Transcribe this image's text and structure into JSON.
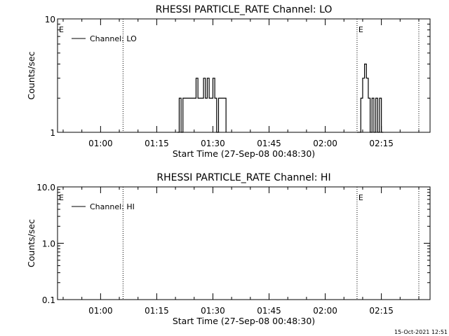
{
  "chart_data": [
    {
      "type": "line",
      "title": "RHESSI PARTICLE_RATE Channel: LO",
      "xlabel": "Start Time (27-Sep-08 00:48:30)",
      "ylabel": "Counts/sec",
      "yscale": "log",
      "ylim": [
        1,
        10
      ],
      "ytick_labels": [
        "1",
        "10"
      ],
      "ytick_values": [
        1,
        10
      ],
      "xlim": [
        "00:48:30",
        "02:28:00"
      ],
      "xtick_labels": [
        "01:00",
        "01:15",
        "01:30",
        "01:45",
        "02:00",
        "02:15"
      ],
      "xtick_values": [
        "01:00",
        "01:15",
        "01:30",
        "01:45",
        "02:00",
        "02:15"
      ],
      "vertical_lines": [
        "01:06:00",
        "02:08:30",
        "02:25:00"
      ],
      "flags": [
        {
          "label": "E",
          "x": "00:48:30"
        },
        {
          "label": "E",
          "x": "02:08:30"
        }
      ],
      "grid": false,
      "legend_position": "top-left",
      "series": [
        {
          "name": "Channel: LO",
          "x": [
            "01:20:30",
            "01:21:00",
            "01:21:30",
            "01:22:00",
            "01:25:00",
            "01:25:30",
            "01:26:00",
            "01:27:00",
            "01:27:30",
            "01:28:00",
            "01:28:30",
            "01:29:00",
            "01:30:00",
            "01:30:30",
            "01:31:00",
            "01:31:30",
            "01:32:00",
            "01:33:00",
            "01:33:30"
          ],
          "y": [
            1,
            2,
            1,
            2,
            2,
            3,
            2,
            2,
            3,
            2,
            3,
            2,
            3,
            2,
            1,
            2,
            2,
            2,
            1
          ]
        },
        {
          "name": "Channel: LO",
          "x": [
            "02:08:30",
            "02:09:30",
            "02:10:00",
            "02:10:30",
            "02:11:00",
            "02:11:30",
            "02:12:00",
            "02:12:30",
            "02:13:00",
            "02:13:30",
            "02:14:00",
            "02:14:30",
            "02:15:00",
            "02:15:30"
          ],
          "y": [
            1,
            2,
            3,
            4,
            3,
            2,
            1,
            2,
            1,
            2,
            1,
            2,
            1,
            1
          ]
        }
      ]
    },
    {
      "type": "line",
      "title": "RHESSI PARTICLE_RATE Channel: HI",
      "xlabel": "Start Time (27-Sep-08 00:48:30)",
      "ylabel": "Counts/sec",
      "yscale": "log",
      "ylim": [
        0.1,
        10
      ],
      "ytick_labels": [
        "0.1",
        "1.0",
        "10.0"
      ],
      "ytick_values": [
        0.1,
        1,
        10
      ],
      "xlim": [
        "00:48:30",
        "02:28:00"
      ],
      "xtick_labels": [
        "01:00",
        "01:15",
        "01:30",
        "01:45",
        "02:00",
        "02:15"
      ],
      "xtick_values": [
        "01:00",
        "01:15",
        "01:30",
        "01:45",
        "02:00",
        "02:15"
      ],
      "vertical_lines": [
        "01:06:00",
        "02:08:30",
        "02:25:00"
      ],
      "flags": [
        {
          "label": "E",
          "x": "00:48:30"
        },
        {
          "label": "E",
          "x": "02:08:30"
        }
      ],
      "grid": false,
      "legend_position": "top-left",
      "series": [
        {
          "name": "Channel: HI",
          "x": [],
          "y": []
        }
      ]
    }
  ],
  "footer": {
    "timestamp": "15-Oct-2021 12:51"
  },
  "colors": {
    "line": "#000000",
    "background": "#ffffff"
  }
}
